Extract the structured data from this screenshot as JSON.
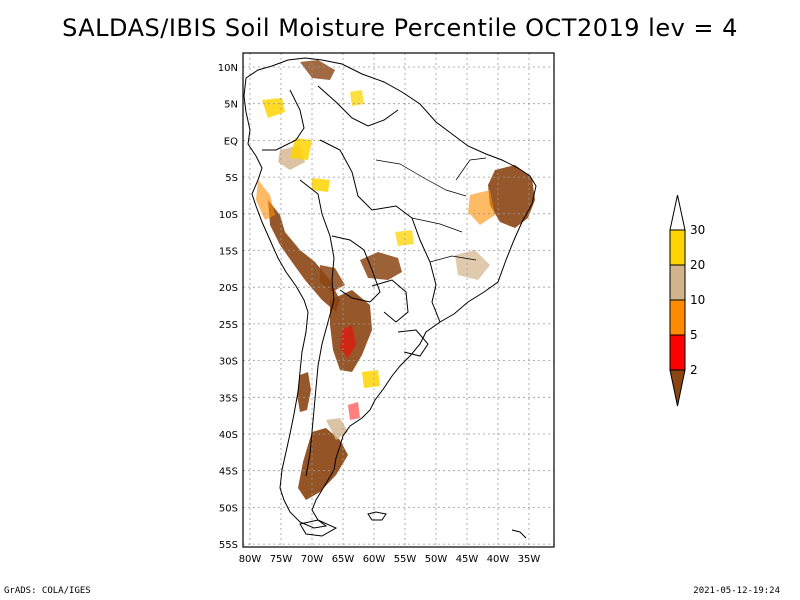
{
  "title": "SALDAS/IBIS Soil Moisture Percentile OCT2019 lev = 4",
  "footer_left": "GrADS: COLA/IGES",
  "footer_right": "2021-05-12-19:24",
  "lat_ticks": [
    "10N",
    "5N",
    "EQ",
    "5S",
    "10S",
    "15S",
    "20S",
    "25S",
    "30S",
    "35S",
    "40S",
    "45S",
    "50S",
    "55S"
  ],
  "lon_ticks": [
    "80W",
    "75W",
    "70W",
    "65W",
    "60W",
    "55W",
    "50W",
    "45W",
    "40W",
    "35W"
  ],
  "legend": {
    "labels": [
      "30",
      "20",
      "10",
      "5",
      "2"
    ],
    "colors": {
      "above_30": "#ffffff",
      "20_30": "#ffd400",
      "10_20": "#d2b48c",
      "5_10": "#ff8c00",
      "2_5": "#ff0000",
      "below_2": "#8b4513"
    }
  }
}
